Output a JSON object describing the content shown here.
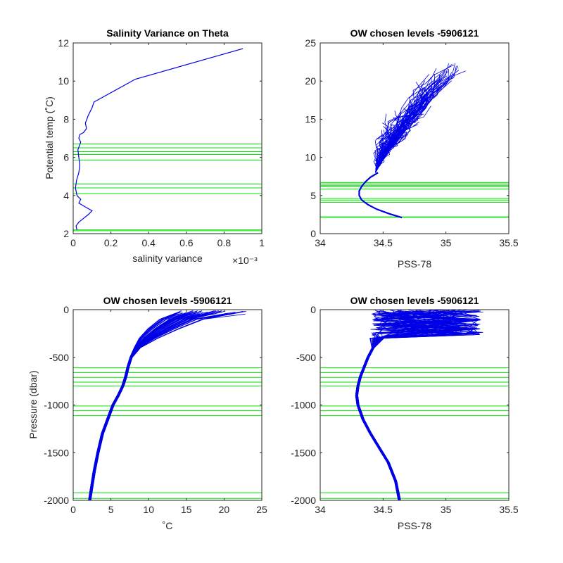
{
  "colors": {
    "profile": "#0000e6",
    "levels": "#00e600",
    "axes": "#262626",
    "background": "#ffffff"
  },
  "chart_data": [
    {
      "id": "p1",
      "type": "line",
      "title": "Salinity Variance on Theta",
      "xlabel": "salinity variance",
      "ylabel": "Potential temp (˚C)",
      "xlim": [
        0,
        0.001
      ],
      "ylim": [
        2,
        12
      ],
      "xticks": [
        0,
        0.0002,
        0.0004,
        0.0006,
        0.0008,
        0.001
      ],
      "xtick_labels": [
        "0",
        "0.2",
        "0.4",
        "0.6",
        "0.8",
        "1"
      ],
      "x_exponent": "×10⁻³",
      "yticks": [
        2,
        4,
        6,
        8,
        10,
        12
      ],
      "ytick_labels": [
        "2",
        "4",
        "6",
        "8",
        "10",
        "12"
      ],
      "series": [
        {
          "x": [
            2e-05,
            1.5e-05,
            3e-05,
            5.5e-05,
            8e-05,
            0.0001,
            6.5e-05,
            3e-05,
            4e-05,
            2e-05,
            1.2e-05,
            1.8e-05,
            3e-05,
            3.5e-05,
            3e-05,
            2.5e-05,
            4e-05,
            3e-05,
            3.5e-05,
            5.5e-05,
            7e-05,
            6.5e-05,
            8e-05,
            0.0001,
            0.00011,
            0.00033,
            0.0009
          ],
          "y": [
            2.2,
            2.4,
            2.6,
            2.8,
            3.0,
            3.2,
            3.4,
            3.6,
            3.8,
            4.0,
            4.4,
            4.8,
            5.2,
            5.6,
            6.0,
            6.4,
            6.8,
            7.0,
            7.2,
            7.3,
            7.5,
            7.8,
            8.2,
            8.6,
            8.9,
            10.1,
            11.7
          ]
        }
      ],
      "levels": [
        2.15,
        2.2,
        4.1,
        4.4,
        4.6,
        5.85,
        6.15,
        6.3,
        6.5,
        6.7
      ]
    },
    {
      "id": "p2",
      "type": "line",
      "title": "OW chosen levels -5906121",
      "xlabel": "PSS-78",
      "ylabel": "",
      "xlim": [
        34,
        35.5
      ],
      "ylim": [
        0,
        25
      ],
      "xticks": [
        34,
        34.5,
        35,
        35.5
      ],
      "xtick_labels": [
        "34",
        "34.5",
        "35",
        "35.5"
      ],
      "yticks": [
        0,
        5,
        10,
        15,
        20,
        25
      ],
      "ytick_labels": [
        "0",
        "5",
        "10",
        "15",
        "20",
        "25"
      ],
      "series": [
        {
          "x": [
            34.65,
            34.55,
            34.45,
            34.38,
            34.33,
            34.31,
            34.31,
            34.33,
            34.36,
            34.4,
            34.46
          ],
          "y": [
            2.1,
            2.6,
            3.2,
            3.8,
            4.4,
            5.0,
            5.6,
            6.2,
            6.8,
            7.4,
            8.0
          ]
        }
      ],
      "levels": [
        2.15,
        2.2,
        4.1,
        4.4,
        4.6,
        5.85,
        6.15,
        6.3,
        6.5,
        6.7
      ]
    },
    {
      "id": "p3",
      "type": "line",
      "title": "OW chosen levels -5906121",
      "xlabel": "˚C",
      "ylabel": "Pressure (dbar)",
      "xlim": [
        0,
        25
      ],
      "ylim": [
        -2000,
        0
      ],
      "xticks": [
        0,
        5,
        10,
        15,
        20,
        25
      ],
      "xtick_labels": [
        "0",
        "5",
        "10",
        "15",
        "20",
        "25"
      ],
      "yticks": [
        -2000,
        -1500,
        -1000,
        -500,
        0
      ],
      "ytick_labels": [
        "-2000",
        "-1500",
        "-1000",
        "-500",
        "0"
      ],
      "series": [
        {
          "x": [
            2.1,
            2.3,
            2.7,
            3.2,
            3.8,
            4.5,
            5.2,
            5.9,
            6.5,
            6.9,
            7.2,
            7.6,
            8.3,
            9.4,
            11,
            13
          ],
          "y": [
            -2000,
            -1900,
            -1700,
            -1500,
            -1300,
            -1150,
            -1000,
            -900,
            -800,
            -700,
            -600,
            -500,
            -400,
            -300,
            -200,
            -100
          ]
        }
      ],
      "levels": [
        -610,
        -660,
        -710,
        -760,
        -800,
        -1010,
        -1060,
        -1110,
        -1920,
        -1980
      ]
    },
    {
      "id": "p4",
      "type": "line",
      "title": "OW chosen levels -5906121",
      "xlabel": "PSS-78",
      "ylabel": "",
      "xlim": [
        34,
        35.5
      ],
      "ylim": [
        -2000,
        0
      ],
      "xticks": [
        34,
        34.5,
        35,
        35.5
      ],
      "xtick_labels": [
        "34",
        "34.5",
        "35",
        "35.5"
      ],
      "yticks": [
        -2000,
        -1500,
        -1000,
        -500,
        0
      ],
      "ytick_labels": [
        "-2000",
        "-1500",
        "-1000",
        "-500",
        "0"
      ],
      "series": [
        {
          "x": [
            34.63,
            34.6,
            34.54,
            34.47,
            34.4,
            34.34,
            34.3,
            34.29,
            34.3,
            34.32,
            34.35,
            34.38,
            34.42,
            34.45
          ],
          "y": [
            -2000,
            -1800,
            -1600,
            -1450,
            -1300,
            -1150,
            -1000,
            -900,
            -800,
            -700,
            -600,
            -500,
            -400,
            -300
          ]
        }
      ],
      "levels": [
        -610,
        -660,
        -710,
        -760,
        -800,
        -1010,
        -1060,
        -1110,
        -1920,
        -1980
      ]
    }
  ]
}
